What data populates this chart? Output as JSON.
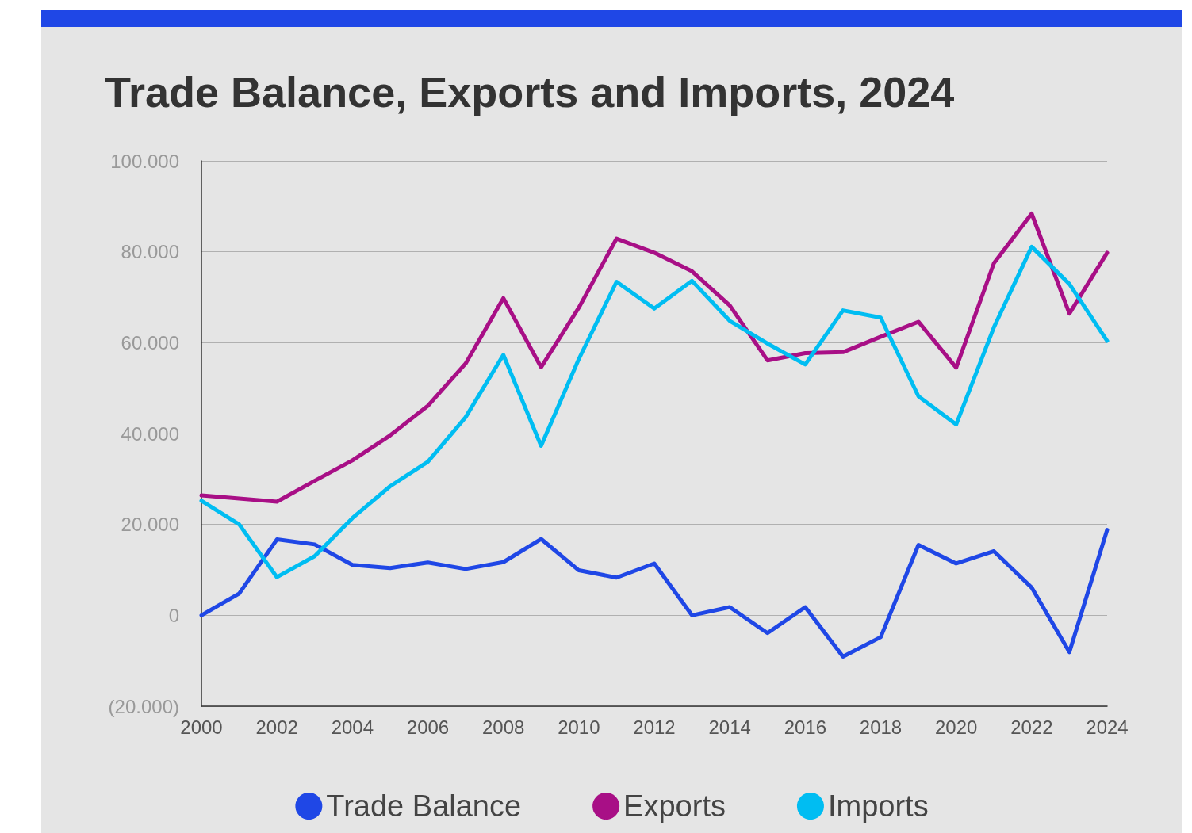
{
  "chart_data": {
    "type": "line",
    "title": "Trade Balance, Exports and Imports, 2024",
    "x": [
      2000,
      2001,
      2002,
      2003,
      2004,
      2005,
      2006,
      2007,
      2008,
      2009,
      2010,
      2011,
      2012,
      2013,
      2014,
      2015,
      2016,
      2017,
      2018,
      2019,
      2020,
      2021,
      2022,
      2023,
      2024
    ],
    "series": [
      {
        "name": "Trade Balance",
        "color": "#1f47e6",
        "values": [
          0,
          4800,
          16700,
          15600,
          11100,
          10400,
          11600,
          10200,
          11700,
          16800,
          9900,
          8300,
          11400,
          0,
          1800,
          -3900,
          1800,
          -9100,
          -4800,
          15500,
          11400,
          14100,
          6100,
          -8100,
          18800
        ]
      },
      {
        "name": "Exports",
        "color": "#a80f86",
        "values": [
          26400,
          25700,
          25000,
          29600,
          34100,
          39600,
          46100,
          55400,
          69800,
          54600,
          67700,
          82900,
          79800,
          75700,
          68200,
          56100,
          57700,
          57900,
          61300,
          64600,
          54500,
          77500,
          88400,
          66400,
          79800
        ]
      },
      {
        "name": "Imports",
        "color": "#00bdf2",
        "values": [
          25200,
          20000,
          8400,
          13000,
          21400,
          28400,
          33800,
          43600,
          57300,
          37300,
          56400,
          73400,
          67500,
          73600,
          64800,
          59800,
          55200,
          67100,
          65500,
          48200,
          42000,
          63400,
          81100,
          72900,
          60400
        ]
      }
    ],
    "xlim": [
      2000,
      2024
    ],
    "xticks": [
      2000,
      2002,
      2004,
      2006,
      2008,
      2010,
      2012,
      2014,
      2016,
      2018,
      2020,
      2022,
      2024
    ],
    "ylim": [
      -20000,
      100000
    ],
    "yticks": [
      {
        "value": -20000,
        "label": "(20.000)"
      },
      0,
      {
        "value": 20000,
        "label": "20.000"
      },
      {
        "value": 40000,
        "label": "40.000"
      },
      {
        "value": 60000,
        "label": "60.000"
      },
      {
        "value": 80000,
        "label": "80.000"
      },
      {
        "value": 100000,
        "label": "100.000"
      }
    ],
    "grid": "y",
    "legend": "bottom",
    "marker": "none",
    "line_style": "solid"
  }
}
